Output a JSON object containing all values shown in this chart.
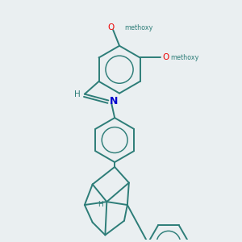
{
  "bg": "#eaeff1",
  "bc": "#2d7d78",
  "nc": "#0000cc",
  "oc": "#ee0000",
  "lw": 1.4,
  "figsize": [
    3.0,
    3.0
  ],
  "dpi": 100,
  "labels": {
    "ome_top": "methoxy",
    "ome_right": "methoxy",
    "h_label": "H",
    "n_label": "N",
    "h_adam": "H"
  }
}
